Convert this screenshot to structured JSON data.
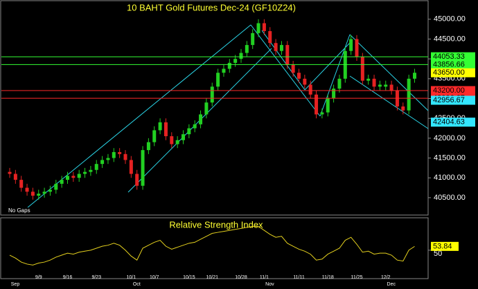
{
  "chart_data": [
    {
      "type": "candlestick",
      "title": "10 BAHT Gold Futures Dec-24 (GF10Z24)",
      "annotation": "No Gaps",
      "categories": [
        null,
        null,
        null,
        null,
        null,
        "9/9",
        null,
        null,
        null,
        null,
        "9/16",
        null,
        null,
        null,
        null,
        "9/23",
        null,
        null,
        null,
        null,
        null,
        "10/1",
        null,
        null,
        null,
        "10/7",
        null,
        null,
        null,
        null,
        null,
        "10/15",
        null,
        null,
        null,
        "10/21",
        null,
        null,
        null,
        null,
        "10/28",
        null,
        null,
        null,
        "11/1",
        null,
        null,
        null,
        null,
        null,
        "11/11",
        null,
        null,
        null,
        null,
        "11/18",
        null,
        null,
        null,
        null,
        "11/25",
        null,
        null,
        null,
        null,
        "12/2",
        null,
        null,
        null,
        null,
        null
      ],
      "months": [
        "Sep",
        null,
        null,
        null,
        null,
        null,
        null,
        null,
        null,
        null,
        null,
        null,
        null,
        null,
        null,
        null,
        null,
        null,
        null,
        null,
        null,
        "Oct",
        null,
        null,
        null,
        null,
        null,
        null,
        null,
        null,
        null,
        null,
        null,
        null,
        null,
        null,
        null,
        null,
        null,
        null,
        null,
        null,
        null,
        null,
        "Nov",
        null,
        null,
        null,
        null,
        null,
        null,
        null,
        null,
        null,
        null,
        null,
        null,
        null,
        null,
        null,
        null,
        null,
        null,
        null,
        null,
        "Dec",
        null,
        null,
        null,
        null,
        null
      ],
      "open": [
        41150,
        41100,
        40950,
        40750,
        40650,
        40550,
        40600,
        40650,
        40700,
        40850,
        40950,
        41050,
        41000,
        41100,
        41150,
        41200,
        41350,
        41450,
        41500,
        41650,
        41600,
        41450,
        41100,
        40800,
        41700,
        41900,
        42200,
        42400,
        42050,
        41850,
        41950,
        42100,
        42250,
        42350,
        42600,
        42900,
        43300,
        43650,
        43750,
        43900,
        44000,
        44150,
        44350,
        44650,
        44900,
        44700,
        44400,
        44200,
        44350,
        43850,
        43650,
        43500,
        43350,
        43100,
        42600,
        42650,
        43000,
        43250,
        43500,
        44200,
        44500,
        44050,
        43450,
        43500,
        43300,
        43300,
        43350,
        43200,
        42800,
        42700,
        43500
      ],
      "high": [
        41250,
        41200,
        41050,
        40850,
        40750,
        40700,
        40750,
        40800,
        40950,
        41050,
        41150,
        41150,
        41200,
        41250,
        41300,
        41450,
        41550,
        41600,
        41750,
        41750,
        41700,
        41550,
        41200,
        41800,
        42000,
        42300,
        42500,
        42500,
        42150,
        42050,
        42200,
        42350,
        42450,
        42700,
        43000,
        43400,
        43750,
        43850,
        44000,
        44100,
        44250,
        44450,
        44750,
        45000,
        45000,
        44800,
        44500,
        44450,
        44450,
        43950,
        43750,
        43600,
        43450,
        43200,
        42750,
        43100,
        43350,
        43600,
        44300,
        44600,
        44600,
        44150,
        43600,
        43600,
        43450,
        43450,
        43450,
        43300,
        42900,
        43600,
        43750
      ],
      "low": [
        41000,
        40850,
        40650,
        40550,
        40450,
        40450,
        40500,
        40550,
        40600,
        40750,
        40850,
        40900,
        40900,
        41000,
        41050,
        41100,
        41250,
        41350,
        41400,
        41500,
        41350,
        41000,
        40700,
        40700,
        41600,
        41800,
        42100,
        41950,
        41750,
        41750,
        41850,
        42000,
        42150,
        42250,
        42500,
        42800,
        43200,
        43550,
        43650,
        43800,
        43900,
        44050,
        44250,
        44550,
        44600,
        44300,
        44100,
        44100,
        43750,
        43550,
        43400,
        43250,
        43000,
        42500,
        42500,
        42550,
        42900,
        43150,
        43400,
        44100,
        43950,
        43350,
        43350,
        43200,
        43200,
        43200,
        43100,
        42700,
        42600,
        42600,
        43400
      ],
      "close": [
        41100,
        40950,
        40750,
        40650,
        40550,
        40600,
        40650,
        40700,
        40850,
        40950,
        41050,
        41000,
        41100,
        41150,
        41200,
        41350,
        41450,
        41500,
        41650,
        41600,
        41450,
        41100,
        40800,
        41700,
        41900,
        42200,
        42400,
        42050,
        41850,
        41950,
        42100,
        42250,
        42350,
        42600,
        42900,
        43300,
        43650,
        43750,
        43900,
        44000,
        44150,
        44350,
        44650,
        44900,
        44700,
        44400,
        44200,
        44350,
        43850,
        43650,
        43500,
        43350,
        43100,
        42600,
        42650,
        43000,
        43250,
        43500,
        44200,
        44500,
        44050,
        43450,
        43500,
        43300,
        43350,
        43350,
        43200,
        42800,
        42700,
        43500,
        43650
      ],
      "up_color": "#22d022",
      "down_color": "#e52222",
      "ylim": [
        40080,
        45450
      ],
      "yticks": [
        {
          "value": 40500,
          "label": "40500.00"
        },
        {
          "value": 41000,
          "label": "41000.00"
        },
        {
          "value": 41500,
          "label": "41500.00"
        },
        {
          "value": 42000,
          "label": "42000.00"
        },
        {
          "value": 42500,
          "label": "42500.00"
        },
        {
          "value": 43000,
          "label": "43000.00"
        },
        {
          "value": 43500,
          "label": "43500.00"
        },
        {
          "value": 44000,
          "label": "44000.00"
        },
        {
          "value": 44500,
          "label": "44500.00"
        },
        {
          "value": 45000,
          "label": "45000.00"
        }
      ],
      "levels": [
        {
          "value": 44053.33,
          "label": "44053.33",
          "color": "#33ff33",
          "line": true
        },
        {
          "value": 43856.66,
          "label": "43856.66",
          "color": "#33ff33",
          "line": true
        },
        {
          "value": 43650,
          "label": "43650.00",
          "color": "#ffff00",
          "line": false
        },
        {
          "value": 43200,
          "label": "43200.00",
          "color": "#ff2a2a",
          "line": true
        },
        {
          "value": 43006.67,
          "label": "43006.67",
          "color": "#ff2a2a",
          "line": true
        },
        {
          "value": 42956.67,
          "label": "42956.67",
          "color": "#33e6ff",
          "line": false
        },
        {
          "value": 42404.63,
          "label": "42404.63",
          "color": "#33e6ff",
          "line": false
        }
      ]
    },
    {
      "type": "line",
      "title": "Relative Strength Index",
      "color": "#e6d21e",
      "values": [
        45,
        42,
        38,
        36,
        35,
        37,
        38,
        40,
        43,
        45,
        47,
        46,
        48,
        49,
        50,
        52,
        54,
        55,
        57,
        55,
        50,
        44,
        40,
        52,
        55,
        58,
        60,
        54,
        51,
        53,
        55,
        57,
        58,
        61,
        64,
        67,
        68,
        69,
        70,
        71,
        72,
        73,
        74,
        74,
        70,
        66,
        63,
        64,
        57,
        54,
        51,
        49,
        46,
        40,
        41,
        46,
        49,
        52,
        60,
        63,
        56,
        48,
        49,
        46,
        47,
        47,
        45,
        40,
        39,
        50,
        53.84
      ],
      "ylim": [
        22,
        82
      ],
      "yticks": [
        50
      ]
    }
  ]
}
